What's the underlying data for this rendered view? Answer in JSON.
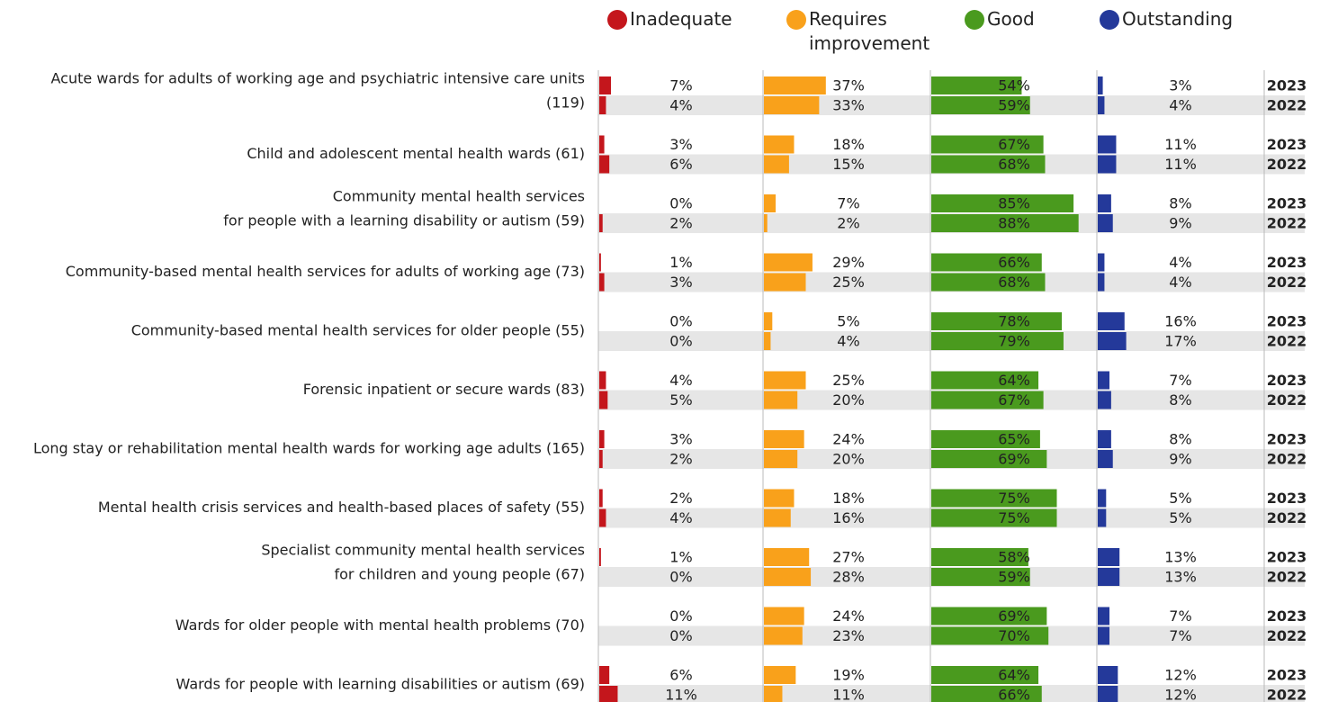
{
  "chart_data": {
    "type": "bar",
    "orientation": "horizontal",
    "categories": [
      [
        "Acute wards for adults of working age and psychiatric intensive care units",
        "(119)"
      ],
      [
        "Child and adolescent mental health wards (61)"
      ],
      [
        "Community mental health services",
        "for people with a learning disability or autism (59)"
      ],
      [
        "Community-based mental health services for adults of working age (73)"
      ],
      [
        "Community-based mental health services for older people (55)"
      ],
      [
        "Forensic inpatient or secure wards (83)"
      ],
      [
        "Long stay or rehabilitation mental health wards for working age adults (165)"
      ],
      [
        "Mental health crisis services and health-based places of safety (55)"
      ],
      [
        "Specialist community mental health services",
        "for children and young people (67)"
      ],
      [
        "Wards for older people with mental health problems (70)"
      ],
      [
        "Wards for people with learning disabilities or autism (69)"
      ]
    ],
    "years": [
      "2023",
      "2022"
    ],
    "xlim": [
      0,
      100
    ],
    "series": [
      {
        "name": "Inadequate",
        "color": "#c4161c",
        "values": [
          [
            7,
            4
          ],
          [
            3,
            6
          ],
          [
            0,
            2
          ],
          [
            1,
            3
          ],
          [
            0,
            0
          ],
          [
            4,
            5
          ],
          [
            3,
            2
          ],
          [
            2,
            4
          ],
          [
            1,
            0
          ],
          [
            0,
            0
          ],
          [
            6,
            11
          ]
        ],
        "value_labels": [
          [
            "7%",
            "4%"
          ],
          [
            "3%",
            "6%"
          ],
          [
            "0%",
            "2%"
          ],
          [
            "1%",
            "3%"
          ],
          [
            "0%",
            "0%"
          ],
          [
            "4%",
            "5%"
          ],
          [
            "3%",
            "2%"
          ],
          [
            "2%",
            "4%"
          ],
          [
            "1%",
            "0%"
          ],
          [
            "0%",
            "0%"
          ],
          [
            "6%",
            "11%"
          ]
        ]
      },
      {
        "name": "Requires improvement",
        "color": "#f9a11b",
        "values": [
          [
            37,
            33
          ],
          [
            18,
            15
          ],
          [
            7,
            2
          ],
          [
            29,
            25
          ],
          [
            5,
            4
          ],
          [
            25,
            20
          ],
          [
            24,
            20
          ],
          [
            18,
            16
          ],
          [
            27,
            28
          ],
          [
            24,
            23
          ],
          [
            19,
            11
          ]
        ],
        "value_labels": [
          [
            "37%",
            "33%"
          ],
          [
            "18%",
            "15%"
          ],
          [
            "7%",
            "2%"
          ],
          [
            "29%",
            "25%"
          ],
          [
            "5%",
            "4%"
          ],
          [
            "25%",
            "20%"
          ],
          [
            "24%",
            "20%"
          ],
          [
            "18%",
            "16%"
          ],
          [
            "27%",
            "28%"
          ],
          [
            "24%",
            "23%"
          ],
          [
            "19%",
            "11%"
          ]
        ]
      },
      {
        "name": "Good",
        "color": "#4a9a1e",
        "values": [
          [
            54,
            59
          ],
          [
            67,
            68
          ],
          [
            85,
            88
          ],
          [
            66,
            68
          ],
          [
            78,
            79
          ],
          [
            64,
            67
          ],
          [
            65,
            69
          ],
          [
            75,
            75
          ],
          [
            58,
            59
          ],
          [
            69,
            70
          ],
          [
            64,
            66
          ]
        ],
        "value_labels": [
          [
            "54%",
            "59%"
          ],
          [
            "67%",
            "68%"
          ],
          [
            "85%",
            "88%"
          ],
          [
            "66%",
            "68%"
          ],
          [
            "78%",
            "79%"
          ],
          [
            "64%",
            "67%"
          ],
          [
            "65%",
            "69%"
          ],
          [
            "75%",
            "75%"
          ],
          [
            "58%",
            "59%"
          ],
          [
            "69%",
            "70%"
          ],
          [
            "64%",
            "66%"
          ]
        ]
      },
      {
        "name": "Outstanding",
        "color": "#24399a",
        "values": [
          [
            3,
            4
          ],
          [
            11,
            11
          ],
          [
            8,
            9
          ],
          [
            4,
            4
          ],
          [
            16,
            17
          ],
          [
            7,
            8
          ],
          [
            8,
            9
          ],
          [
            5,
            5
          ],
          [
            13,
            13
          ],
          [
            7,
            7
          ],
          [
            12,
            12
          ]
        ],
        "value_labels": [
          [
            "3%",
            "4%"
          ],
          [
            "11%",
            "11%"
          ],
          [
            "8%",
            "9%"
          ],
          [
            "4%",
            "4%"
          ],
          [
            "16%",
            "17%"
          ],
          [
            "7%",
            "8%"
          ],
          [
            "8%",
            "9%"
          ],
          [
            "5%",
            "5%"
          ],
          [
            "13%",
            "13%"
          ],
          [
            "7%",
            "7%"
          ],
          [
            "12%",
            "12%"
          ]
        ]
      }
    ]
  }
}
